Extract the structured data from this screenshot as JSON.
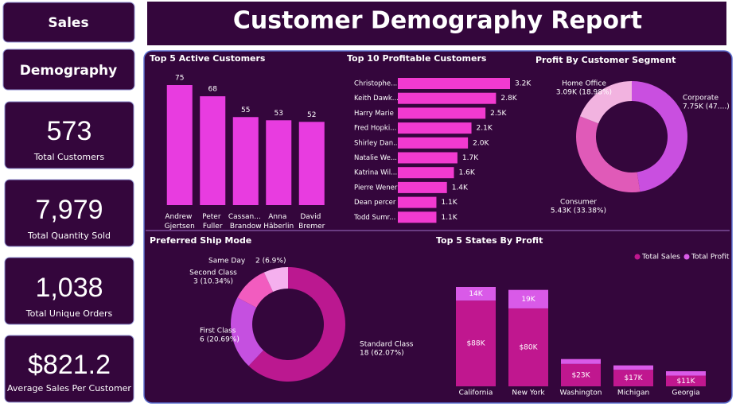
{
  "nav": {
    "buttons": [
      "Sales",
      "Demography"
    ]
  },
  "header": {
    "title": "Customer Demography Report"
  },
  "kpis": [
    {
      "value": "573",
      "label": "Total Customers"
    },
    {
      "value": "7,979",
      "label": "Total Quantity Sold"
    },
    {
      "value": "1,038",
      "label": "Total Unique Orders"
    },
    {
      "value": "$821.2",
      "label": "Average Sales Per Customer"
    }
  ],
  "chart_data": [
    {
      "type": "bar",
      "title": "Top 5 Active Customers",
      "categories": [
        "Andrew Gjertsen",
        "Peter Fuller",
        "Cassan... Brandow",
        "Anna Häberlin",
        "David Bremer"
      ],
      "values": [
        75,
        68,
        55,
        53,
        52
      ],
      "color": "#e83ce0"
    },
    {
      "type": "hbar",
      "title": "Top 10 Profitable Customers",
      "categories": [
        "Christophe...",
        "Keith Dawk...",
        "Harry Marie",
        "Fred Hopki...",
        "Shirley Dan...",
        "Natalie We...",
        "Katrina Wil...",
        "Pierre Wener",
        "Dean percer",
        "Todd Sumr..."
      ],
      "values": [
        3200,
        2800,
        2500,
        2100,
        2000,
        1700,
        1600,
        1400,
        1100,
        1100
      ],
      "value_labels": [
        "3.2K",
        "2.8K",
        "2.5K",
        "2.1K",
        "2.0K",
        "1.7K",
        "1.6K",
        "1.4K",
        "1.1K",
        "1.1K"
      ],
      "color": "#f23ad0"
    },
    {
      "type": "donut",
      "title": "Profit By Customer Segment",
      "categories": [
        "Corporate",
        "Consumer",
        "Home Office"
      ],
      "values": [
        7750,
        5430,
        3090
      ],
      "value_labels": [
        "7.75K (47....)",
        "5.43K (33.38%)",
        "3.09K (18.98%)"
      ],
      "colors": [
        "#c94fe0",
        "#e05ab8",
        "#f2b3e0"
      ]
    },
    {
      "type": "donut",
      "title": "Preferred Ship Mode",
      "categories": [
        "Standard Class",
        "First Class",
        "Second Class",
        "Same Day"
      ],
      "values": [
        18,
        6,
        3,
        2
      ],
      "value_labels": [
        "18 (62.07%)",
        "6 (20.69%)",
        "3 (10.34%)",
        "2 (6.9%)"
      ],
      "colors": [
        "#bb1890",
        "#c550e0",
        "#f25cbf",
        "#f5b0ee"
      ]
    },
    {
      "type": "stacked-bar",
      "title": "Top 5 States By Profit",
      "categories": [
        "California",
        "New York",
        "Washington",
        "Michigan",
        "Georgia"
      ],
      "series": [
        {
          "name": "Total Sales",
          "color": "#c0178f",
          "values": [
            88000,
            80000,
            23000,
            17000,
            11000
          ],
          "value_labels": [
            "$88K",
            "$80K",
            "$23K",
            "$17K",
            "$11K"
          ]
        },
        {
          "name": "Total Profit",
          "color": "#d95ae8",
          "values": [
            14000,
            19000,
            5000,
            4500,
            4500
          ],
          "value_labels": [
            "14K",
            "19K",
            null,
            null,
            null
          ]
        }
      ],
      "legend": "top-right"
    }
  ]
}
